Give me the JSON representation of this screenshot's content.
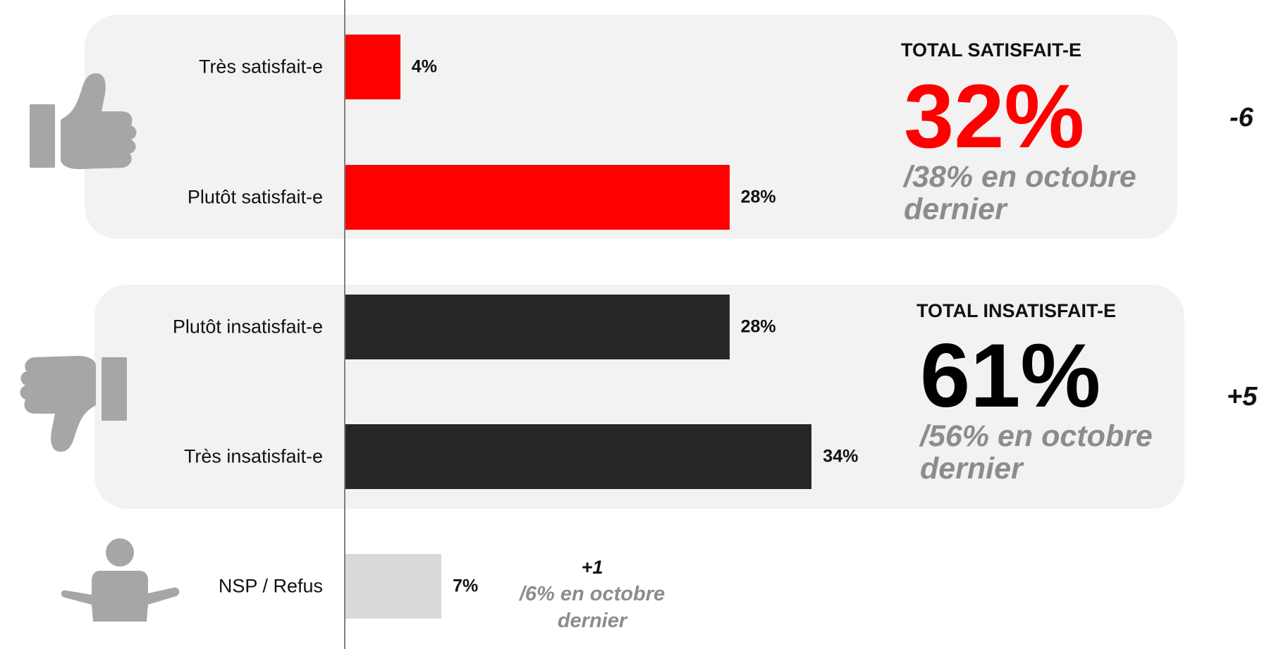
{
  "chart_data": {
    "type": "bar",
    "orientation": "horizontal",
    "categories": [
      "Très satisfait-e",
      "Plutôt satisfait-e",
      "Plutôt insatisfait-e",
      "Très insatisfait-e",
      "NSP / Refus"
    ],
    "values": [
      4,
      28,
      28,
      34,
      7
    ],
    "value_labels": [
      "4%",
      "28%",
      "28%",
      "34%",
      "7%"
    ],
    "xlim": [
      0,
      100
    ],
    "colors": [
      "#ff0000",
      "#ff0000",
      "#262626",
      "#262626",
      "#d9d9d9"
    ]
  },
  "groups": {
    "satisfait": {
      "title": "TOTAL SATISFAIT-E",
      "total": "32%",
      "previous": "/38% en octobre dernier",
      "delta": "-6",
      "color": "#ff0000"
    },
    "insatisfait": {
      "title": "TOTAL INSATISFAIT-E",
      "total": "61%",
      "previous": "/56% en octobre dernier",
      "delta": "+5",
      "color": "#000000"
    },
    "nsp": {
      "delta": "+1",
      "previous": "/6% en octobre dernier"
    }
  },
  "icons": {
    "satisfait": "thumbs-up-icon",
    "insatisfait": "thumbs-down-icon",
    "nsp": "shrug-person-icon"
  }
}
